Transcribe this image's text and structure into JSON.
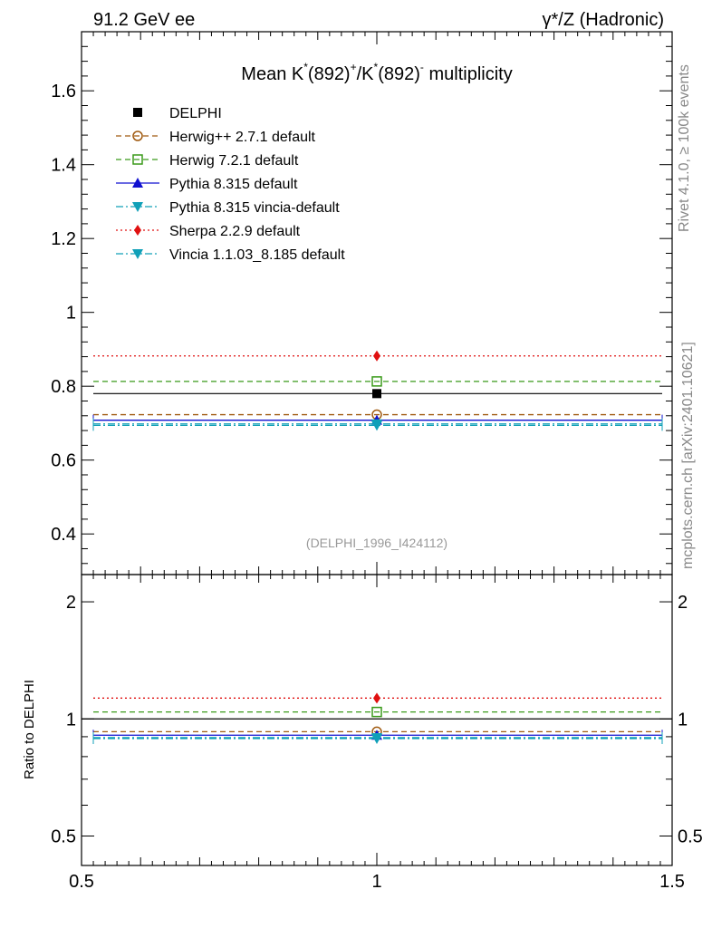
{
  "header": {
    "energy_label": "91.2 GeV ee",
    "process_label": "γ*/Z (Hadronic)"
  },
  "side_text": {
    "rivet": "Rivet 4.1.0, ≥ 100k events",
    "mcplots": "mcplots.cern.ch [arXiv:2401.10621]"
  },
  "chart_data": [
    {
      "type": "scatter",
      "panel": "main",
      "title": "Mean K*(892)+/K*(892)- multiplicity",
      "title_parts": {
        "prefix": "Mean K",
        "star1": "*",
        "mid1": "(892)",
        "plus": "+",
        "slash": "/K",
        "star2": "*",
        "mid2": "(892)",
        "minus": "-",
        "suffix": " multiplicity"
      },
      "analysis_id": "(DELPHI_1996_I424112)",
      "xlim": [
        0.5,
        1.5
      ],
      "ylim": [
        0.29,
        1.76
      ],
      "yticks": [
        {
          "value": 0.4,
          "label": "0.4"
        },
        {
          "value": 0.6,
          "label": "0.6"
        },
        {
          "value": 0.8,
          "label": "0.8"
        },
        {
          "value": 1.0,
          "label": "1"
        },
        {
          "value": 1.2,
          "label": "1.2"
        },
        {
          "value": 1.4,
          "label": "1.4"
        },
        {
          "value": 1.6,
          "label": "1.6"
        }
      ],
      "legend_position": "top-left",
      "series": [
        {
          "name": "DELPHI",
          "x": 1.0,
          "value": 0.78,
          "color": "#000000",
          "marker": "square",
          "style": "data"
        },
        {
          "name": "Herwig++ 2.7.1 default",
          "x": 1.0,
          "value": 0.723,
          "color": "#a05a10",
          "marker": "circle-open",
          "style": "dashed"
        },
        {
          "name": "Herwig 7.2.1 default",
          "x": 1.0,
          "value": 0.813,
          "color": "#3a9a1a",
          "marker": "square-open",
          "style": "dashed"
        },
        {
          "name": "Pythia 8.315 default",
          "x": 1.0,
          "value": 0.708,
          "color": "#1010d0",
          "marker": "triangle-up",
          "style": "solid"
        },
        {
          "name": "Pythia 8.315 vincia-default",
          "x": 1.0,
          "value": 0.694,
          "color": "#10a0b8",
          "marker": "triangle-down",
          "style": "dashdot"
        },
        {
          "name": "Sherpa 2.2.9 default",
          "x": 1.0,
          "value": 0.882,
          "color": "#e01010",
          "marker": "diamond",
          "style": "dotted"
        },
        {
          "name": "Vincia 1.1.03_8.185 default",
          "x": 1.0,
          "value": 0.698,
          "color": "#10a0b8",
          "marker": "triangle-down",
          "style": "dashdot"
        }
      ]
    },
    {
      "type": "scatter",
      "panel": "ratio",
      "ylabel": "Ratio to DELPHI",
      "xlim": [
        0.5,
        1.5
      ],
      "ylim": [
        0.42,
        2.35
      ],
      "log_y": true,
      "xticks": [
        {
          "value": 0.5,
          "label": "0.5"
        },
        {
          "value": 1.0,
          "label": "1"
        },
        {
          "value": 1.5,
          "label": "1.5"
        }
      ],
      "yticks": [
        {
          "value": 0.5,
          "label": "0.5"
        },
        {
          "value": 1.0,
          "label": "1"
        },
        {
          "value": 2.0,
          "label": "2"
        }
      ],
      "series": [
        {
          "name": "DELPHI",
          "value": 1.0
        },
        {
          "name": "Herwig++ 2.7.1 default",
          "value": 0.927
        },
        {
          "name": "Herwig 7.2.1 default",
          "value": 1.042
        },
        {
          "name": "Pythia 8.315 default",
          "value": 0.908
        },
        {
          "name": "Pythia 8.315 vincia-default",
          "value": 0.89
        },
        {
          "name": "Sherpa 2.2.9 default",
          "value": 1.131
        },
        {
          "name": "Vincia 1.1.03_8.185 default",
          "value": 0.895
        }
      ]
    }
  ]
}
